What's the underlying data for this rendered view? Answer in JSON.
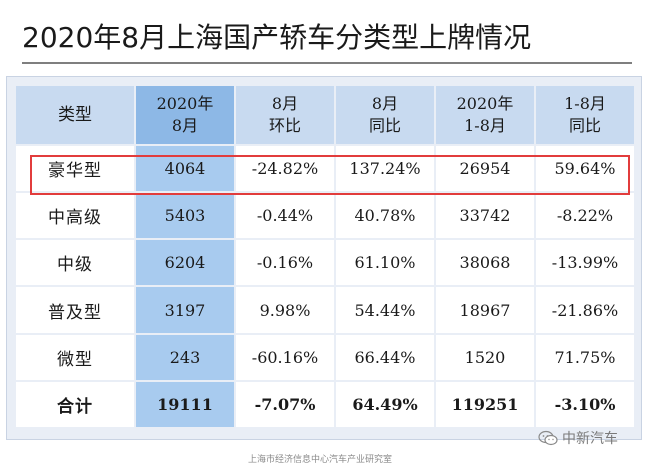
{
  "title": "2020年8月上海国产轿车分类型上牌情况",
  "table": {
    "headers": [
      [
        "类型"
      ],
      [
        "2020年",
        "8月"
      ],
      [
        "8月",
        "环比"
      ],
      [
        "8月",
        "同比"
      ],
      [
        "2020年",
        "1-8月"
      ],
      [
        "1-8月",
        "同比"
      ]
    ],
    "rows": [
      [
        "豪华型",
        "4064",
        "-24.82%",
        "137.24%",
        "26954",
        "59.64%"
      ],
      [
        "中高级",
        "5403",
        "-0.44%",
        "40.78%",
        "33742",
        "-8.22%"
      ],
      [
        "中级",
        "6204",
        "-0.16%",
        "61.10%",
        "38068",
        "-13.99%"
      ],
      [
        "普及型",
        "3197",
        "9.98%",
        "54.44%",
        "18967",
        "-21.86%"
      ],
      [
        "微型",
        "243",
        "-60.16%",
        "66.44%",
        "1520",
        "71.75%"
      ]
    ],
    "total": [
      "合计",
      "19111",
      "-7.07%",
      "64.49%",
      "119251",
      "-3.10%"
    ]
  },
  "colors": {
    "header_bg": "#c8daf0",
    "highlight_col": "#a8cbef",
    "highlight_header": "#8db8e6",
    "red_box": "#e23c3c",
    "frame_bg": "#e9eef6"
  },
  "footer": "上海市经济信息中心汽车产业研究室",
  "watermark": {
    "icon": "wechat-icon",
    "text": "中新汽车"
  }
}
